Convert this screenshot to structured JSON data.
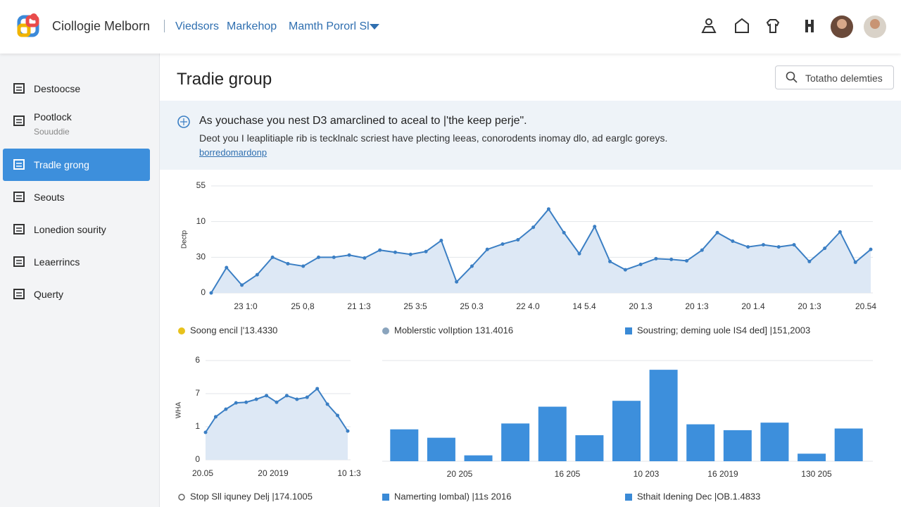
{
  "header": {
    "brand": "Ciollogie Melborn",
    "nav": [
      "Viedsors",
      "Markehop",
      "Mamth Pororl Sl"
    ]
  },
  "sidebar": {
    "items": [
      {
        "label": "Destoocse"
      },
      {
        "label": "Pootlock",
        "sub": "Souuddie"
      },
      {
        "label": "Tradle grong",
        "active": true
      },
      {
        "label": "Seouts"
      },
      {
        "label": "Lonedion sourity"
      },
      {
        "label": "Leaerrincs"
      },
      {
        "label": "Querty"
      }
    ]
  },
  "page": {
    "title": "Tradie group",
    "search_placeholder": "Totatho delemties"
  },
  "banner": {
    "title": "As youchase you nest D3 amarclined to aceal to |'the keep perje\".",
    "body": "Deot you I leaplitiaple rib is tecklnalc scriest have plecting leeas, conorodents inomay dlo, ad earglc goreys.",
    "link": "borredomardonp"
  },
  "main_chart": {
    "type": "line",
    "y_label": "Dectp",
    "color": "#3b7fc4",
    "ylim": [
      0,
      3
    ],
    "yticks": [
      {
        "value": 3,
        "label": "55"
      },
      {
        "value": 2,
        "label": "10"
      },
      {
        "value": 1,
        "label": "30"
      },
      0
    ],
    "categories": [
      "23 1:0",
      "25 0,8",
      "21 1:3",
      "25 3:5",
      "25 0.3",
      "22 4.0",
      "14 5.4",
      "20 1.3",
      "20 1:3",
      "20 1.4",
      "20 1:3",
      "20.54"
    ],
    "values": [
      0,
      0.71,
      0.22,
      0.51,
      1.0,
      0.82,
      0.75,
      1.0,
      1.0,
      1.06,
      0.98,
      1.2,
      1.14,
      1.08,
      1.16,
      1.47,
      0.31,
      0.75,
      1.22,
      1.37,
      1.49,
      1.84,
      2.35,
      1.69,
      1.1,
      1.86,
      0.88,
      0.65,
      0.8,
      0.96,
      0.94,
      0.9,
      1.2,
      1.69,
      1.45,
      1.29,
      1.35,
      1.29,
      1.35,
      0.88,
      1.25,
      1.71,
      0.86,
      1.22
    ],
    "legend": [
      {
        "label": "Soong encil |'13.4330",
        "color": "#e8c21c"
      },
      {
        "label": "Moblerstic volIption 131.4016",
        "color": "#8aa4bd"
      },
      {
        "label": "Soustring; deming uole IS4 ded] |151,2003",
        "color": "#3a8ad6"
      }
    ]
  },
  "small_chart": {
    "type": "line",
    "y_label": "WHA",
    "color": "#3b7fc4",
    "ylim": [
      0,
      3
    ],
    "yticks": [
      {
        "value": 3,
        "label": "6"
      },
      {
        "value": 2,
        "label": "7"
      },
      1,
      0
    ],
    "categories": [
      "20.05",
      "20 2019",
      "10 1:3"
    ],
    "values": [
      0.83,
      1.3,
      1.53,
      1.72,
      1.74,
      1.83,
      1.94,
      1.74,
      1.94,
      1.83,
      1.89,
      2.15,
      1.68,
      1.34,
      0.87
    ]
  },
  "bar_chart": {
    "type": "bar",
    "color": "#3d8fdc",
    "ylim": [
      0,
      120
    ],
    "values": [
      38,
      28,
      7,
      45,
      65,
      31,
      72,
      109,
      44,
      37,
      46,
      9,
      39
    ],
    "categories": [
      "20 205",
      "16 205",
      "10 203",
      "16 2019",
      "130 205"
    ]
  },
  "bottom_legend": [
    {
      "label": "Stop Sll iquney Delj |174.1005",
      "color": "#666666"
    },
    {
      "label": "Namerting Iombal) |11s 2016",
      "color": "#3a8ad6"
    },
    {
      "label": "Sthait Idening Dec |OB.1.4833",
      "color": "#3a8ad6"
    }
  ]
}
